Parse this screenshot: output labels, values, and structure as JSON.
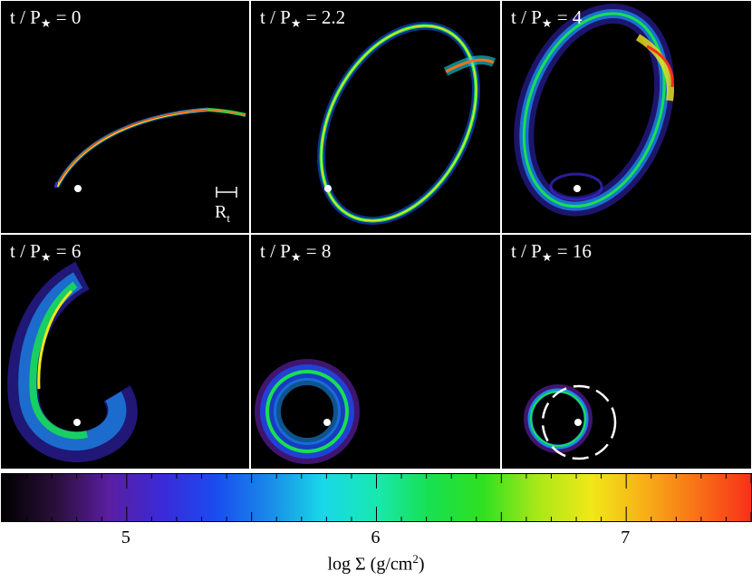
{
  "panels": [
    {
      "time_label": "t / P",
      "time_value": "= 0"
    },
    {
      "time_label": "t / P",
      "time_value": "= 2.2"
    },
    {
      "time_label": "t / P",
      "time_value": "= 4"
    },
    {
      "time_label": "t / P",
      "time_value": "= 6"
    },
    {
      "time_label": "t / P",
      "time_value": "= 8"
    },
    {
      "time_label": "t / P",
      "time_value": "= 16"
    }
  ],
  "star_symbol": "★",
  "scale_bar": {
    "label": "R",
    "subscript": "t"
  },
  "colorbar": {
    "ticks": [
      "5",
      "6",
      "7"
    ],
    "tick_values": [
      5,
      6,
      7
    ],
    "range": [
      4.5,
      7.5
    ],
    "title_prefix": "log Σ  (g/cm",
    "title_sup": "2",
    "title_suffix": ")",
    "colors": [
      "#000000",
      "#2a0f3a",
      "#5a1ea0",
      "#3a2ad8",
      "#1a4cf0",
      "#1a8ae8",
      "#18d8e8",
      "#18e8b0",
      "#18e050",
      "#30e020",
      "#a8e818",
      "#f0e818",
      "#f8b018",
      "#f87018",
      "#f83018"
    ]
  },
  "colors": {
    "background": "#000000",
    "divider": "#ffffff",
    "marker": "#ffffff"
  }
}
